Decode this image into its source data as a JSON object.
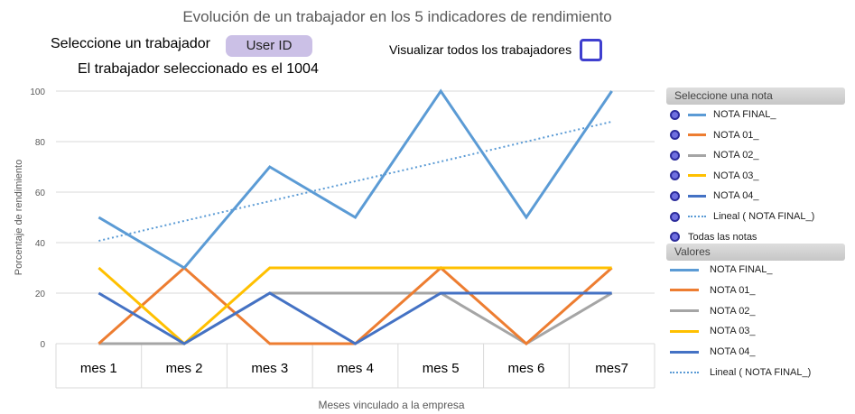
{
  "header": {
    "title": "Evolución de un trabajador en los 5 indicadores de rendimiento",
    "select_label": "Seleccione un trabajador",
    "userid_button": "User ID",
    "show_all_label": "Visualizar todos los trabajadores",
    "selected_text": "El trabajador seleccionado es el 1004"
  },
  "slicer": {
    "header": "Seleccione una nota",
    "items": [
      {
        "label": "NOTA FINAL_",
        "color": "#5b9bd5",
        "style": "solid"
      },
      {
        "label": "NOTA 01_",
        "color": "#ed7d31",
        "style": "solid"
      },
      {
        "label": "NOTA 02_",
        "color": "#a5a5a5",
        "style": "solid"
      },
      {
        "label": "NOTA 03_",
        "color": "#ffc000",
        "style": "solid"
      },
      {
        "label": "NOTA 04_",
        "color": "#4472c4",
        "style": "solid"
      },
      {
        "label": "Lineal ( NOTA FINAL_)",
        "color": "#5b9bd5",
        "style": "dotted"
      },
      {
        "label": "Todas las notas",
        "color": "",
        "style": "none"
      }
    ]
  },
  "legend": {
    "header": "Valores",
    "items": [
      {
        "label": "NOTA FINAL_",
        "color": "#5b9bd5",
        "style": "solid"
      },
      {
        "label": "NOTA 01_",
        "color": "#ed7d31",
        "style": "solid"
      },
      {
        "label": "NOTA 02_",
        "color": "#a5a5a5",
        "style": "solid"
      },
      {
        "label": "NOTA 03_",
        "color": "#ffc000",
        "style": "solid"
      },
      {
        "label": "NOTA 04_",
        "color": "#4472c4",
        "style": "solid"
      },
      {
        "label": "Lineal ( NOTA FINAL_)",
        "color": "#5b9bd5",
        "style": "dotted"
      }
    ]
  },
  "chart_data": {
    "type": "line",
    "xlabel": "Meses vinculado a la empresa",
    "ylabel": "Porcentaje de rendimiento",
    "ylim": [
      0,
      100
    ],
    "yticks": [
      0,
      20,
      40,
      60,
      80,
      100
    ],
    "grid": true,
    "categories": [
      "mes 1",
      "mes 2",
      "mes 3",
      "mes 4",
      "mes 5",
      "mes 6",
      "mes7"
    ],
    "series": [
      {
        "name": "NOTA FINAL_",
        "color": "#5b9bd5",
        "values": [
          50,
          30,
          70,
          50,
          100,
          50,
          100
        ]
      },
      {
        "name": "NOTA 01_",
        "color": "#ed7d31",
        "values": [
          0,
          30,
          0,
          0,
          30,
          0,
          30
        ]
      },
      {
        "name": "NOTA 02_",
        "color": "#a5a5a5",
        "values": [
          0,
          0,
          20,
          20,
          20,
          0,
          20
        ]
      },
      {
        "name": "NOTA 03_",
        "color": "#ffc000",
        "values": [
          30,
          0,
          30,
          30,
          30,
          30,
          30
        ]
      },
      {
        "name": "NOTA 04_",
        "color": "#4472c4",
        "values": [
          20,
          0,
          20,
          0,
          20,
          20,
          20
        ]
      },
      {
        "name": "Lineal ( NOTA FINAL_)",
        "color": "#5b9bd5",
        "dashed": true,
        "values": [
          40.7,
          48.6,
          56.4,
          64.3,
          72.1,
          80.0,
          87.9
        ]
      }
    ]
  }
}
